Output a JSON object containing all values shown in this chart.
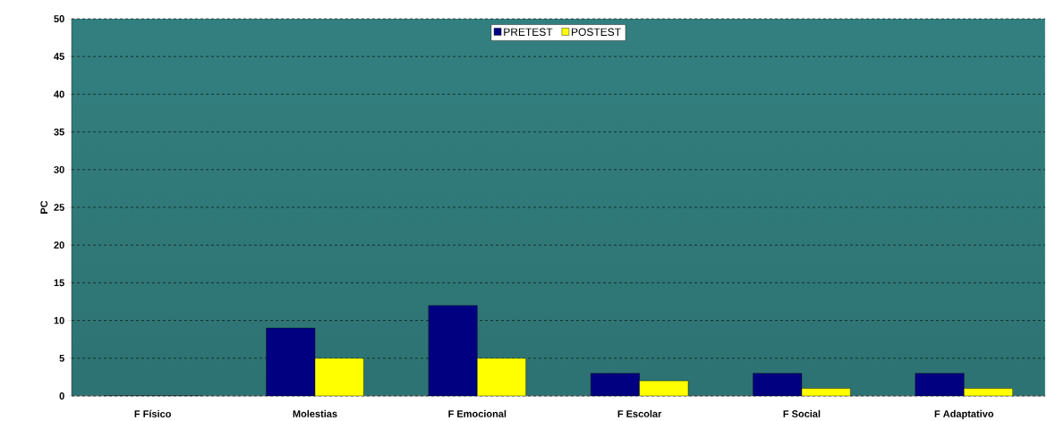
{
  "chart_data": {
    "type": "bar",
    "ylabel": "PC",
    "categories": [
      "F Físico",
      "Molestias",
      "F Emocional",
      "F Escolar",
      "F Social",
      "F Adaptativo"
    ],
    "series": [
      {
        "name": "PRETEST",
        "color": "#000080",
        "values": [
          0,
          9,
          12,
          3,
          3,
          3
        ]
      },
      {
        "name": "POSTEST",
        "color": "#ffff00",
        "values": [
          0,
          5,
          5,
          2,
          1,
          1
        ]
      }
    ],
    "ylim": [
      0,
      50
    ],
    "yticks": [
      0,
      5,
      10,
      15,
      20,
      25,
      30,
      35,
      40,
      45,
      50
    ],
    "grid": "y",
    "legend": "top"
  }
}
